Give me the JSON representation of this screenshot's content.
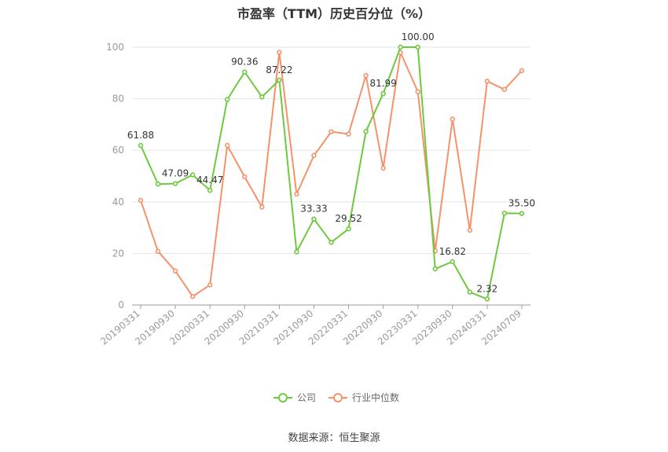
{
  "chart_data": {
    "type": "line",
    "title": "市盈率（TTM）历史百分位（%）",
    "ylim": [
      0,
      100
    ],
    "yticks": [
      0,
      20,
      40,
      60,
      80,
      100
    ],
    "grid": true,
    "legend_position": "bottom-center",
    "x": [
      "20190331",
      "20190630",
      "20190930",
      "20191231",
      "20200331",
      "20200630",
      "20200930",
      "20201231",
      "20210331",
      "20210630",
      "20210930",
      "20211231",
      "20220331",
      "20220630",
      "20220930",
      "20221231",
      "20230331",
      "20230630",
      "20230930",
      "20231231",
      "20240331",
      "20240630",
      "20240709"
    ],
    "xtick_labels": [
      "20190331",
      "20190930",
      "20200331",
      "20200930",
      "20210331",
      "20210930",
      "20220331",
      "20220930",
      "20230331",
      "20230930",
      "20240331",
      "20240709"
    ],
    "series": [
      {
        "name": "公司",
        "color": "#6dc93d",
        "values": [
          61.88,
          46.9,
          47.09,
          50.5,
          44.47,
          79.7,
          90.36,
          80.7,
          87.22,
          20.6,
          33.33,
          24.3,
          29.52,
          67.3,
          81.99,
          100.0,
          100.0,
          14.0,
          16.82,
          5.0,
          2.32,
          35.6,
          35.5
        ]
      },
      {
        "name": "行业中位数",
        "color": "#f5926a",
        "values": [
          40.6,
          20.8,
          13.2,
          3.3,
          7.8,
          61.9,
          49.7,
          38.0,
          98.0,
          43.0,
          58.0,
          67.2,
          66.3,
          89.0,
          53.1,
          97.9,
          82.7,
          21.0,
          72.1,
          29.0,
          86.8,
          83.6,
          90.9
        ]
      }
    ],
    "data_labels": [
      {
        "series": 0,
        "index": 0,
        "text": "61.88"
      },
      {
        "series": 0,
        "index": 2,
        "text": "47.09"
      },
      {
        "series": 0,
        "index": 4,
        "text": "44.47"
      },
      {
        "series": 0,
        "index": 6,
        "text": "90.36"
      },
      {
        "series": 0,
        "index": 8,
        "text": "87.22"
      },
      {
        "series": 0,
        "index": 10,
        "text": "33.33"
      },
      {
        "series": 0,
        "index": 12,
        "text": "29.52"
      },
      {
        "series": 0,
        "index": 14,
        "text": "81.99"
      },
      {
        "series": 0,
        "index": 16,
        "text": "100.00"
      },
      {
        "series": 0,
        "index": 18,
        "text": "16.82"
      },
      {
        "series": 0,
        "index": 20,
        "text": "2.32"
      },
      {
        "series": 0,
        "index": 22,
        "text": "35.50"
      }
    ]
  },
  "source": "数据来源：恒生聚源"
}
